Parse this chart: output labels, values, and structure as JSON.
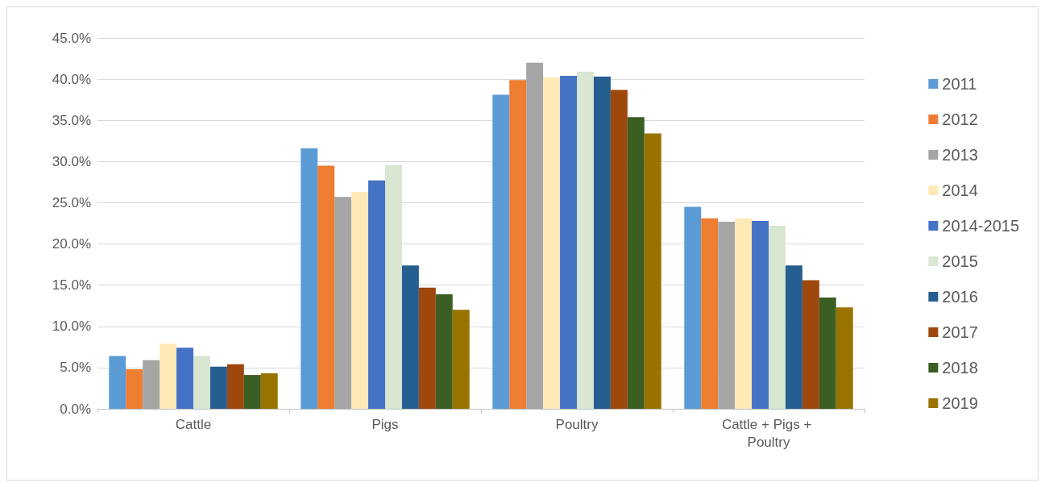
{
  "chart_data": {
    "type": "bar",
    "categories": [
      "Cattle",
      "Pigs",
      "Poultry",
      "Cattle + Pigs + Poultry"
    ],
    "series": [
      {
        "name": "2011",
        "color": "#5b9bd5",
        "values": [
          6.4,
          31.6,
          38.1,
          24.5
        ]
      },
      {
        "name": "2012",
        "color": "#ed7d31",
        "values": [
          4.8,
          29.5,
          39.9,
          23.1
        ]
      },
      {
        "name": "2013",
        "color": "#a5a5a5",
        "values": [
          5.9,
          25.7,
          42.0,
          22.7
        ]
      },
      {
        "name": "2014",
        "color": "#ffe9b6",
        "values": [
          7.9,
          26.3,
          40.2,
          23.1
        ]
      },
      {
        "name": "2014-2015",
        "color": "#4472c4",
        "values": [
          7.4,
          27.7,
          40.4,
          22.8
        ]
      },
      {
        "name": "2015",
        "color": "#d9e6d1",
        "values": [
          6.4,
          29.6,
          40.9,
          22.2
        ]
      },
      {
        "name": "2016",
        "color": "#255e91",
        "values": [
          5.1,
          17.4,
          40.3,
          17.4
        ]
      },
      {
        "name": "2017",
        "color": "#9e480e",
        "values": [
          5.4,
          14.7,
          38.7,
          15.6
        ]
      },
      {
        "name": "2018",
        "color": "#3b5e22",
        "values": [
          4.1,
          13.9,
          35.4,
          13.5
        ]
      },
      {
        "name": "2019",
        "color": "#997300",
        "values": [
          4.3,
          12.0,
          33.4,
          12.3
        ]
      }
    ],
    "ylim": [
      0,
      45
    ],
    "yticks": [
      {
        "value": 0,
        "label": "0.0%"
      },
      {
        "value": 5,
        "label": "5.0%"
      },
      {
        "value": 10,
        "label": "10.0%"
      },
      {
        "value": 15,
        "label": "15.0%"
      },
      {
        "value": 20,
        "label": "20.0%"
      },
      {
        "value": 25,
        "label": "25.0%"
      },
      {
        "value": 30,
        "label": "30.0%"
      },
      {
        "value": 35,
        "label": "35.0%"
      },
      {
        "value": 40,
        "label": "40.0%"
      },
      {
        "value": 45,
        "label": "45.0%"
      }
    ],
    "grid": "y",
    "legend": "right"
  }
}
